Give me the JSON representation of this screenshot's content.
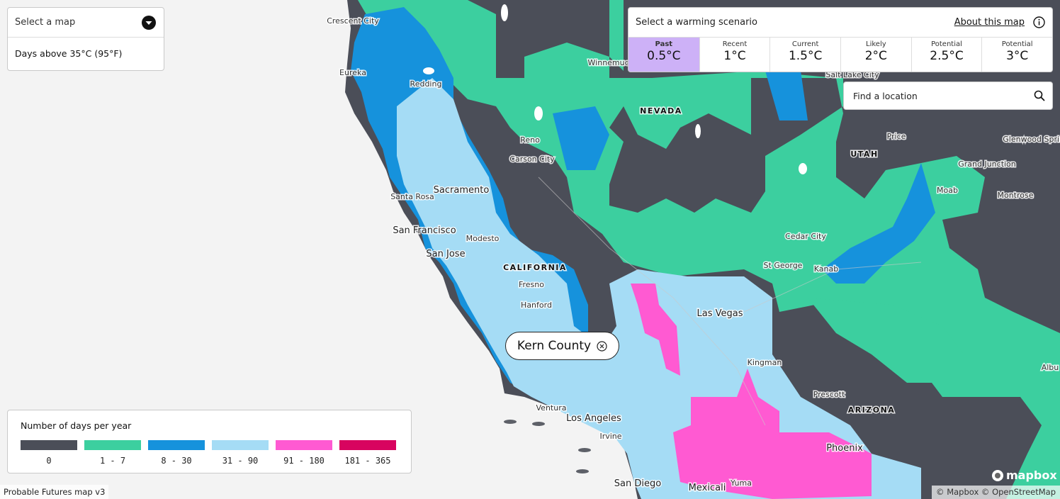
{
  "map_selector": {
    "placeholder": "Select a map",
    "selected": "Days above 35°C (95°F)"
  },
  "scenarios": {
    "title": "Select a warming scenario",
    "about": "About this map",
    "selected": 0,
    "selected_color": "#cdb1f7",
    "options": [
      {
        "label": "Past",
        "value": "0.5°C"
      },
      {
        "label": "Recent",
        "value": "1°C"
      },
      {
        "label": "Current",
        "value": "1.5°C"
      },
      {
        "label": "Likely",
        "value": "2°C"
      },
      {
        "label": "Potential",
        "value": "2.5°C"
      },
      {
        "label": "Potential",
        "value": "3°C"
      }
    ]
  },
  "search": {
    "placeholder": "Find a location"
  },
  "selected_location": "Kern County",
  "legend": {
    "title": "Number of days per year",
    "bins": [
      {
        "label": "0",
        "color": "#4b4e58"
      },
      {
        "label": "1 - 7",
        "color": "#3ccf9f"
      },
      {
        "label": "8 - 30",
        "color": "#1692dc"
      },
      {
        "label": "31 - 90",
        "color": "#a5dcf5"
      },
      {
        "label": "91 - 180",
        "color": "#ff5ad2"
      },
      {
        "label": "181 - 365",
        "color": "#d8045f"
      }
    ]
  },
  "place_labels": [
    {
      "text": "Crescent City",
      "kind": "city"
    },
    {
      "text": "Eureka",
      "kind": "city"
    },
    {
      "text": "Redding",
      "kind": "city"
    },
    {
      "text": "Winnemucca",
      "kind": "city"
    },
    {
      "text": "NEVADA",
      "kind": "state"
    },
    {
      "text": "Salt Lake City",
      "kind": "city"
    },
    {
      "text": "Reno",
      "kind": "city"
    },
    {
      "text": "Carson City",
      "kind": "city"
    },
    {
      "text": "Price",
      "kind": "city"
    },
    {
      "text": "UTAH",
      "kind": "state"
    },
    {
      "text": "Glenwood Springs",
      "kind": "city"
    },
    {
      "text": "Grand Junction",
      "kind": "city"
    },
    {
      "text": "Moab",
      "kind": "city"
    },
    {
      "text": "Montrose",
      "kind": "city"
    },
    {
      "text": "Sacramento",
      "kind": "major"
    },
    {
      "text": "Santa Rosa",
      "kind": "city"
    },
    {
      "text": "San Francisco",
      "kind": "major"
    },
    {
      "text": "Modesto",
      "kind": "city"
    },
    {
      "text": "San Jose",
      "kind": "major"
    },
    {
      "text": "CALIFORNIA",
      "kind": "state"
    },
    {
      "text": "Cedar City",
      "kind": "city"
    },
    {
      "text": "St George",
      "kind": "city"
    },
    {
      "text": "Kanab",
      "kind": "city"
    },
    {
      "text": "Fresno",
      "kind": "city"
    },
    {
      "text": "Hanford",
      "kind": "city"
    },
    {
      "text": "Las Vegas",
      "kind": "major"
    },
    {
      "text": "Kingman",
      "kind": "city"
    },
    {
      "text": "Albu",
      "kind": "city"
    },
    {
      "text": "Prescott",
      "kind": "city"
    },
    {
      "text": "ARIZONA",
      "kind": "state"
    },
    {
      "text": "Ventura",
      "kind": "city"
    },
    {
      "text": "Los Angeles",
      "kind": "major"
    },
    {
      "text": "Irvine",
      "kind": "city"
    },
    {
      "text": "Phoenix",
      "kind": "major"
    },
    {
      "text": "San Diego",
      "kind": "major"
    },
    {
      "text": "Mexicali",
      "kind": "major"
    },
    {
      "text": "Yuma",
      "kind": "city"
    }
  ],
  "footer": {
    "version": "Probable Futures map v3",
    "attribution": "© Mapbox © OpenStreetMap",
    "logo": "mapbox"
  }
}
